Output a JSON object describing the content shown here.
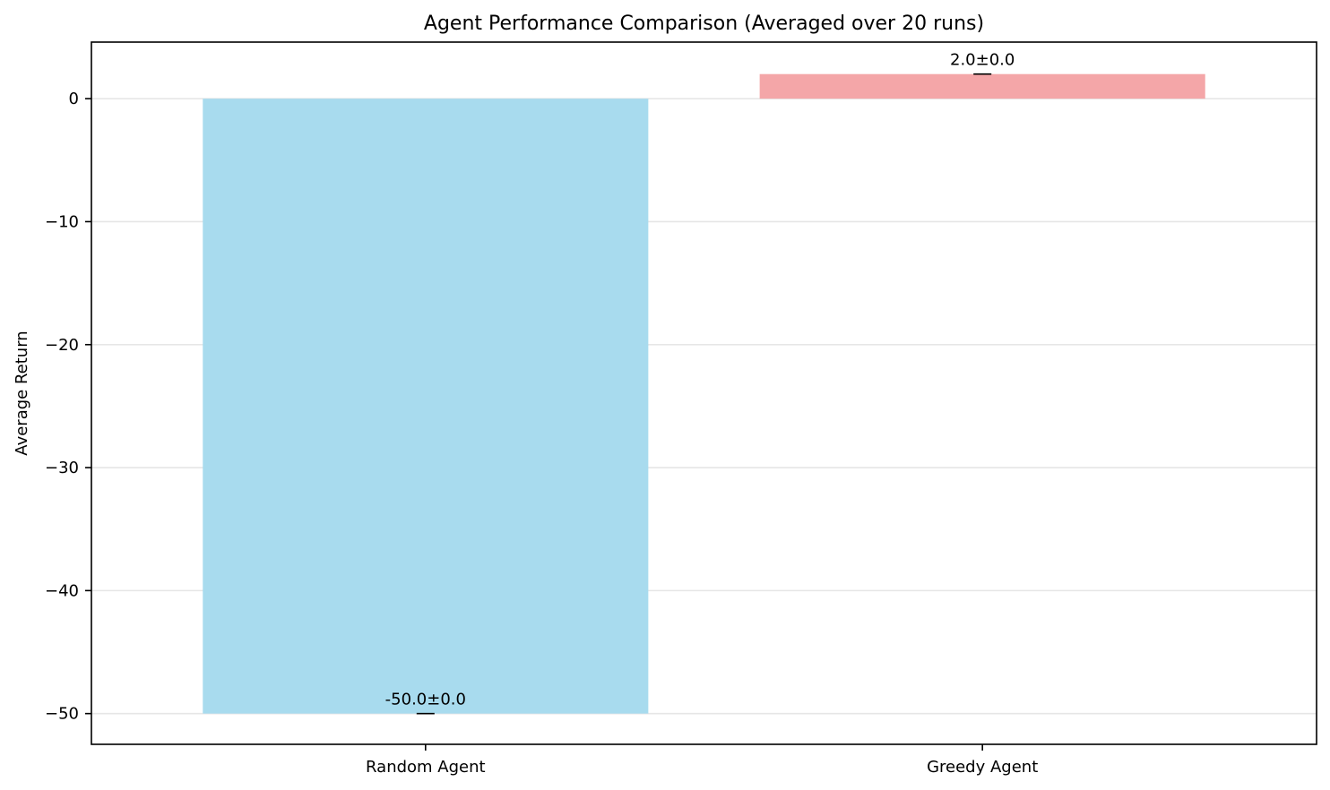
{
  "chart_data": {
    "type": "bar",
    "title": "Agent Performance Comparison (Averaged over 20 runs)",
    "xlabel": "",
    "ylabel": "Average Return",
    "categories": [
      "Random Agent",
      "Greedy Agent"
    ],
    "values": [
      -50.0,
      2.0
    ],
    "errors": [
      0.0,
      0.0
    ],
    "data_labels": [
      "-50.0±0.0",
      "2.0±0.0"
    ],
    "bar_colors": [
      "#a8dbee",
      "#f4a6a8"
    ],
    "ylim": [
      -52.5,
      4.6
    ],
    "yticks": [
      0,
      -10,
      -20,
      -30,
      -40,
      -50
    ],
    "ytick_labels": [
      "0",
      "−10",
      "−20",
      "−30",
      "−40",
      "−50"
    ],
    "grid": true,
    "grid_axis": "y",
    "legend": "none"
  }
}
